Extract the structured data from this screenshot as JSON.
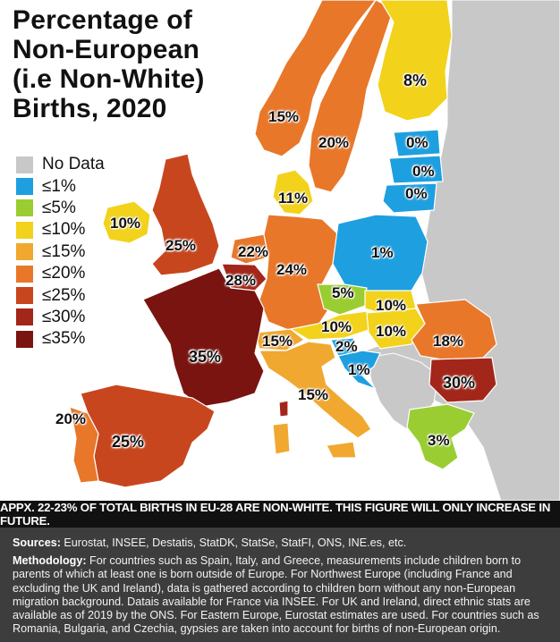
{
  "title": "Percentage of\nNon-European\n(i.e Non-White)\nBirths, 2020",
  "legend": [
    {
      "label": "No Data",
      "color": "#c8c8c8"
    },
    {
      "label": "≤1%",
      "color": "#1e9fe0"
    },
    {
      "label": "≤5%",
      "color": "#9acd32"
    },
    {
      "label": "≤10%",
      "color": "#f2d21b"
    },
    {
      "label": "≤15%",
      "color": "#f0a830"
    },
    {
      "label": "≤20%",
      "color": "#e8772a"
    },
    {
      "label": "≤25%",
      "color": "#c8461e"
    },
    {
      "label": "≤30%",
      "color": "#a3261a"
    },
    {
      "label": "≤35%",
      "color": "#7a1410"
    }
  ],
  "labels": {
    "finland": "8%",
    "norway": "15%",
    "sweden": "20%",
    "estonia": "0%",
    "latvia": "0%",
    "lithuania": "0%",
    "denmark": "11%",
    "ireland": "10%",
    "uk": "25%",
    "netherlands": "22%",
    "belgium": "28%",
    "germany": "24%",
    "poland": "1%",
    "czechia": "5%",
    "slovakia": "10%",
    "austria": "10%",
    "hungary": "10%",
    "switzerland": "15%",
    "romania": "18%",
    "slovenia": "2%",
    "croatia": "1%",
    "france": "35%",
    "italy": "15%",
    "bulgaria": "30%",
    "portugal": "20%",
    "spain": "25%",
    "greece": "3%"
  },
  "note": "APPX. 22-23% OF TOTAL BIRTHS IN EU-28 ARE NON-WHITE. THIS FIGURE WILL ONLY INCREASE IN FUTURE.",
  "sources": {
    "heading": "Sources:",
    "text": " Eurostat, INSEE, Destatis, StatDK, StatSe, StatFI, ONS, INE.es, etc."
  },
  "methodology": {
    "heading": "Methodology:",
    "text": " For countries such as Spain, Italy, and Greece, measurements include children born to parents of which at least one is born outside of Europe. For Northwest Europe (including France and excluding the UK and Ireland), data is gathered according to children born without any non-European migration background. Datais available for France via INSEE. For UK and Ireland, direct ethnic stats are available as of 2019 by the ONS. For Eastern Europe, Eurostat estimates are used. For countries such as Romania, Bulgaria, and Czechia, gypsies are taken into account for births of non-European origin."
  }
}
